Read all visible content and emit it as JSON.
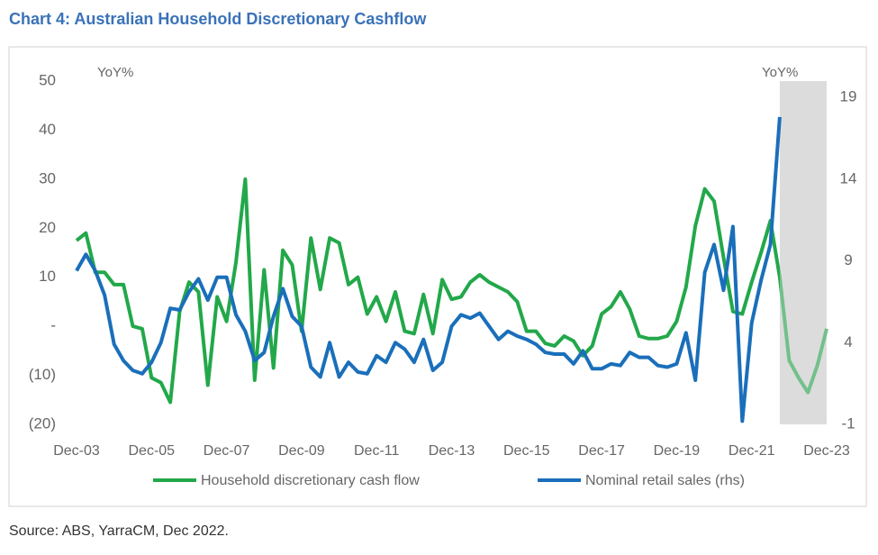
{
  "chart_data": {
    "type": "line",
    "title": "Chart 4: Australian Household Discretionary Cashflow",
    "source": "Source: ABS, YarraCM, Dec 2022.",
    "y_label": "YoY%",
    "y2_label": "YoY%",
    "categories": [
      "Dec-03",
      null,
      null,
      null,
      null,
      null,
      null,
      null,
      "Dec-05",
      null,
      null,
      null,
      null,
      null,
      null,
      null,
      "Dec-07",
      null,
      null,
      null,
      null,
      null,
      null,
      null,
      "Dec-09",
      null,
      null,
      null,
      null,
      null,
      null,
      null,
      "Dec-11",
      null,
      null,
      null,
      null,
      null,
      null,
      null,
      "Dec-13",
      null,
      null,
      null,
      null,
      null,
      null,
      null,
      "Dec-15",
      null,
      null,
      null,
      null,
      null,
      null,
      null,
      "Dec-17",
      null,
      null,
      null,
      null,
      null,
      null,
      null,
      "Dec-19",
      null,
      null,
      null,
      null,
      null,
      null,
      null,
      "Dec-21",
      null,
      null,
      null,
      null,
      null,
      null,
      null,
      "Dec-23"
    ],
    "series": [
      {
        "name": "Household discretionary cash flow",
        "color": "#22a84a",
        "forecast_color": "#72c08a",
        "values": [
          17.5,
          19,
          11,
          11,
          8.5,
          8.5,
          0,
          -0.5,
          -10.5,
          -11.5,
          -15.5,
          3,
          9,
          7,
          -12,
          6,
          1,
          13,
          30,
          -11,
          11.5,
          -8.5,
          15.5,
          12.5,
          -1,
          18,
          7.5,
          18,
          17,
          8.5,
          10,
          2.5,
          6,
          1,
          7,
          -1,
          -1.5,
          6.5,
          -1.5,
          9.5,
          5.5,
          6,
          9,
          10.5,
          9,
          8,
          7,
          5,
          -1,
          -1,
          -3.5,
          -4,
          -2,
          -3,
          -6,
          -4,
          2.5,
          4,
          7,
          3.5,
          -2,
          -2.5,
          -2.5,
          -2,
          1,
          8,
          20.5,
          28,
          25.5,
          14,
          3,
          2.5,
          9,
          15,
          21.5,
          10,
          -7,
          -10.5,
          -13.5,
          -8,
          -0.5
        ]
      },
      {
        "name": "Nominal retail sales (rhs)",
        "color": "#1a6fba",
        "axis": "y2",
        "values": [
          8.4,
          9.4,
          8.4,
          6.9,
          3.9,
          2.9,
          2.3,
          2.1,
          2.8,
          4.0,
          6.1,
          6.0,
          7.1,
          7.9,
          6.6,
          8.0,
          8.0,
          5.7,
          4.7,
          2.9,
          3.4,
          5.6,
          7.3,
          5.6,
          5.0,
          2.5,
          1.9,
          4.0,
          1.9,
          2.8,
          2.2,
          2.1,
          3.2,
          2.8,
          4.0,
          3.6,
          2.8,
          4.2,
          2.3,
          2.8,
          5.0,
          5.7,
          5.5,
          5.8,
          5.0,
          4.2,
          4.7,
          4.4,
          4.2,
          3.9,
          3.4,
          3.3,
          3.3,
          2.7,
          3.5,
          2.4,
          2.4,
          2.7,
          2.6,
          3.4,
          3.1,
          3.1,
          2.6,
          2.5,
          2.7,
          4.6,
          1.7,
          8.3,
          10.0,
          7.2,
          11.1,
          -0.8,
          5.2,
          7.8,
          10.0,
          17.8,
          null,
          null,
          null,
          null,
          null
        ]
      }
    ],
    "ylim": [
      -20,
      50
    ],
    "yticks": [
      {
        "value": -20,
        "label": "(20)"
      },
      {
        "value": -10,
        "label": "(10)"
      },
      {
        "value": 0,
        "label": "-"
      },
      10,
      20,
      30,
      40,
      50
    ],
    "y2lim": [
      -1,
      20
    ],
    "y2ticks": [
      -1,
      4,
      9,
      14,
      19
    ],
    "shaded_from": 75,
    "shade_color": "#dcdcdc",
    "grid": false
  }
}
